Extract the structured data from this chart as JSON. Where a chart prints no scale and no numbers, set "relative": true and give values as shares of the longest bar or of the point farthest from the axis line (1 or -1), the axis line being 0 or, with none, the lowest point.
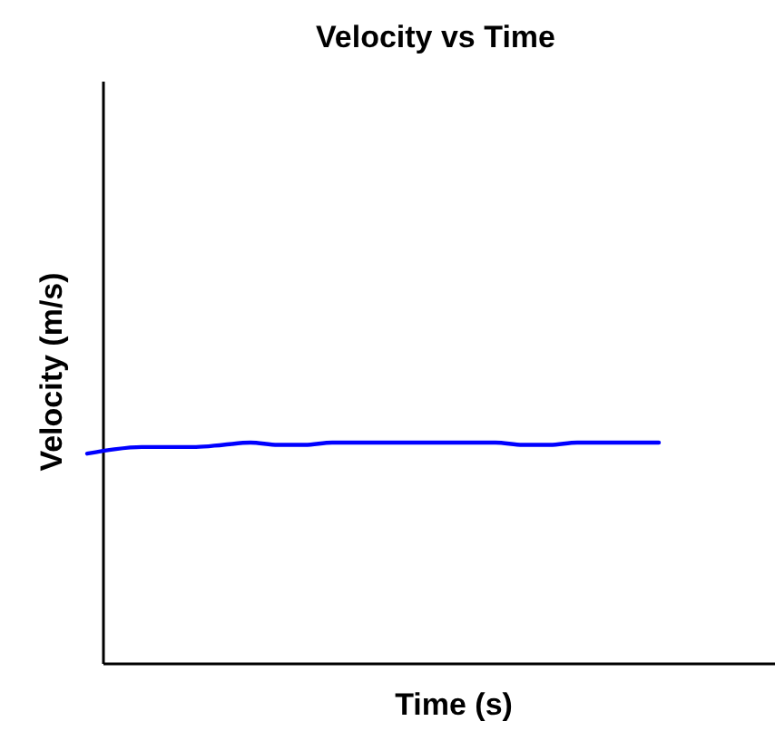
{
  "chart_data": {
    "type": "line",
    "title": "Velocity vs Time",
    "xlabel": "Time (s)",
    "ylabel": "Velocity (m/s)",
    "relative": true,
    "categories": [
      null,
      null,
      null,
      null,
      null,
      null,
      null,
      null,
      null,
      null,
      null,
      null,
      null,
      null,
      null,
      null,
      null,
      null,
      null,
      null,
      null,
      null
    ],
    "series": [
      {
        "color": "#0000ff",
        "values": [
          0.95,
          0.97,
          0.98,
          0.98,
          0.98,
          0.99,
          1,
          0.99,
          0.99,
          1,
          1,
          1,
          1,
          1,
          1,
          1,
          0.99,
          0.99,
          1,
          1,
          1,
          1
        ]
      }
    ],
    "marker": "none",
    "line_style": "solid"
  }
}
